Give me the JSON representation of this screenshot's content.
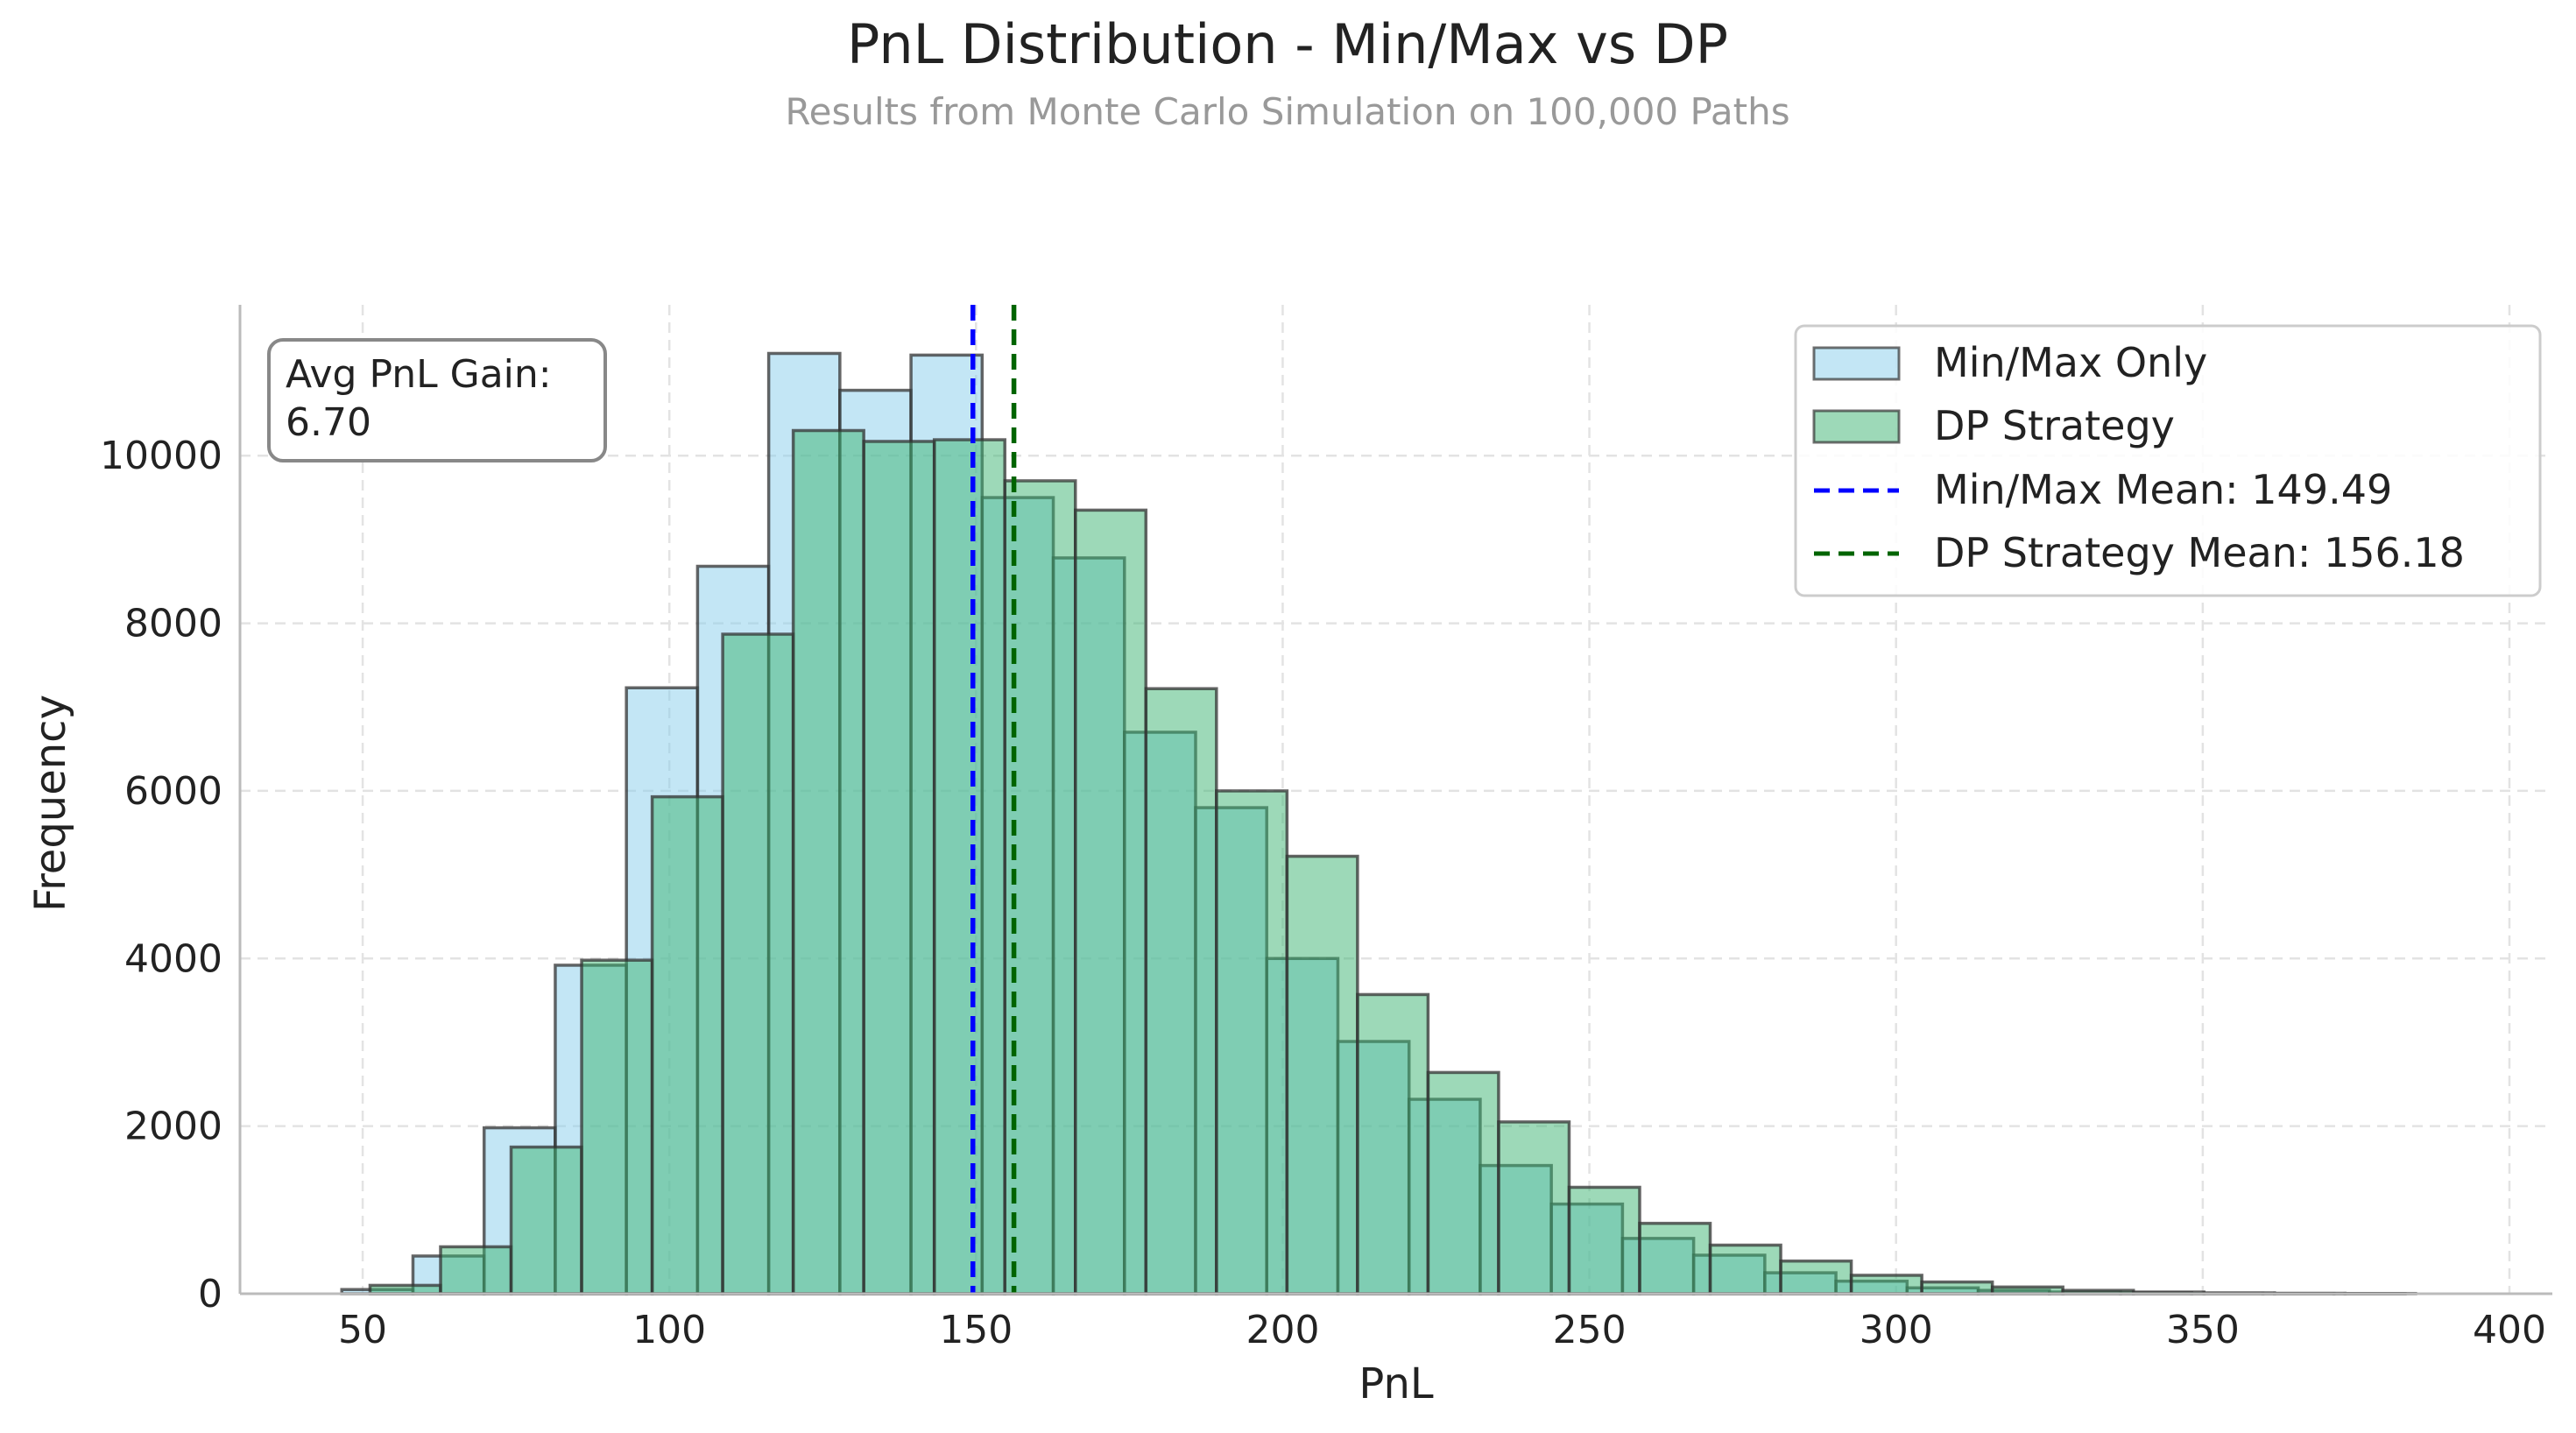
{
  "chart_data": {
    "type": "bar",
    "title": "PnL Distribution - Min/Max vs DP",
    "subtitle": "Results from Monte Carlo Simulation on 100,000 Paths",
    "xlabel": "PnL",
    "ylabel": "Frequency",
    "xlim": [
      30,
      407
    ],
    "ylim": [
      0,
      11800
    ],
    "x_ticks": [
      50,
      100,
      150,
      200,
      250,
      300,
      350,
      400
    ],
    "y_ticks": [
      0,
      2000,
      4000,
      6000,
      8000,
      10000
    ],
    "grid": true,
    "legend_position": "top-right",
    "colors": {
      "minmax_fill": "#87CEEB",
      "dp_fill": "#3CB371",
      "edge": "#333333",
      "minmax_mean_line": "#0000FF",
      "dp_mean_line": "#006400"
    },
    "series": [
      {
        "name": "Min/Max Only",
        "bin_edges": [
          46.6,
          58.2,
          69.8,
          81.4,
          93.0,
          104.6,
          116.2,
          127.8,
          139.4,
          151.0,
          162.6,
          174.2,
          185.8,
          197.4,
          209.0,
          220.6,
          232.2,
          243.8,
          255.4,
          267.0,
          278.6,
          290.2,
          301.8,
          313.4,
          325.0,
          336.6,
          348.2,
          359.8,
          371.4,
          383.0
        ],
        "values": [
          50,
          450,
          1980,
          3920,
          7230,
          8680,
          11220,
          10780,
          11200,
          9500,
          8780,
          6700,
          5800,
          4000,
          3010,
          2320,
          1530,
          1070,
          660,
          460,
          250,
          150,
          70,
          40,
          20,
          10,
          5,
          3,
          2
        ]
      },
      {
        "name": "DP Strategy",
        "bin_edges": [
          51.2,
          62.7,
          74.2,
          85.7,
          97.2,
          108.7,
          120.2,
          131.7,
          143.2,
          154.7,
          166.2,
          177.7,
          189.2,
          200.7,
          212.2,
          223.7,
          235.2,
          246.7,
          258.2,
          269.7,
          281.2,
          292.7,
          304.2,
          315.7,
          327.2,
          338.7,
          350.2,
          361.7,
          373.2,
          384.7
        ],
        "values": [
          100,
          560,
          1750,
          3980,
          5930,
          7870,
          10300,
          10170,
          10190,
          9700,
          9350,
          7220,
          6000,
          5220,
          3570,
          2640,
          2050,
          1270,
          840,
          580,
          390,
          220,
          140,
          80,
          40,
          20,
          10,
          5,
          3
        ]
      }
    ],
    "mean_lines": [
      {
        "name": "Min/Max Mean: 149.49",
        "x": 149.49,
        "style": "dashed"
      },
      {
        "name": "DP Strategy Mean: 156.18",
        "x": 156.18,
        "style": "dashed"
      }
    ],
    "annotation": {
      "line1": "Avg PnL Gain:",
      "line2": "6.70"
    }
  }
}
